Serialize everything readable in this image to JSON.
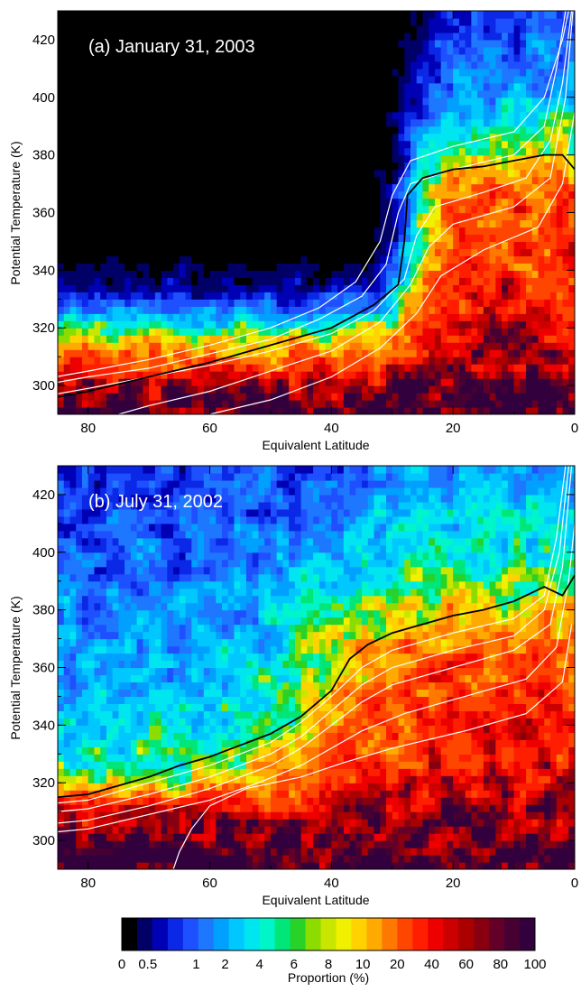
{
  "chart_data": [
    {
      "type": "heatmap",
      "title": "(a) January 31, 2003",
      "xlabel": "Equivalent Latitude",
      "ylabel": "Potential Temperature (K)",
      "xlim": [
        85,
        0
      ],
      "ylim": [
        290,
        430
      ],
      "xticks": [
        80,
        60,
        40,
        20,
        0
      ],
      "yticks": [
        300,
        320,
        340,
        360,
        380,
        400,
        420
      ],
      "black_contour": [
        [
          85,
          296
        ],
        [
          80,
          298
        ],
        [
          70,
          303
        ],
        [
          60,
          308
        ],
        [
          50,
          314
        ],
        [
          40,
          320
        ],
        [
          33,
          328
        ],
        [
          29,
          335
        ],
        [
          28,
          350
        ],
        [
          27.5,
          366
        ],
        [
          25,
          372
        ],
        [
          20,
          375
        ],
        [
          15,
          376
        ],
        [
          10,
          378
        ],
        [
          5,
          380
        ],
        [
          2,
          380
        ],
        [
          0,
          375
        ]
      ],
      "white_contours": [
        [
          [
            88,
            300
          ],
          [
            80,
            303
          ],
          [
            70,
            306
          ],
          [
            60,
            311
          ],
          [
            50,
            316
          ],
          [
            42,
            323
          ],
          [
            35,
            331
          ],
          [
            31,
            342
          ],
          [
            29,
            360
          ],
          [
            27,
            370
          ],
          [
            20,
            375
          ],
          [
            10,
            380
          ],
          [
            5,
            390
          ],
          [
            3,
            410
          ],
          [
            1.5,
            430
          ]
        ],
        [
          [
            88,
            302
          ],
          [
            80,
            305
          ],
          [
            70,
            309
          ],
          [
            60,
            314
          ],
          [
            50,
            320
          ],
          [
            42,
            327
          ],
          [
            36,
            336
          ],
          [
            32,
            350
          ],
          [
            30,
            366
          ],
          [
            27,
            378
          ],
          [
            20,
            383
          ],
          [
            10,
            388
          ],
          [
            5,
            400
          ],
          [
            2,
            420
          ],
          [
            1,
            430
          ]
        ],
        [
          [
            88,
            296
          ],
          [
            80,
            299
          ],
          [
            70,
            303
          ],
          [
            60,
            307
          ],
          [
            50,
            312
          ],
          [
            40,
            318
          ],
          [
            33,
            326
          ],
          [
            28,
            337
          ],
          [
            26,
            352
          ],
          [
            23,
            362
          ],
          [
            15,
            367
          ],
          [
            8,
            372
          ],
          [
            4,
            385
          ],
          [
            2,
            405
          ],
          [
            0.5,
            430
          ]
        ],
        [
          [
            75,
            290
          ],
          [
            70,
            293
          ],
          [
            60,
            298
          ],
          [
            50,
            305
          ],
          [
            40,
            312
          ],
          [
            32,
            322
          ],
          [
            27,
            335
          ],
          [
            24,
            348
          ],
          [
            20,
            356
          ],
          [
            10,
            362
          ],
          [
            4,
            372
          ],
          [
            1.5,
            400
          ],
          [
            0.3,
            430
          ]
        ],
        [
          [
            60,
            290
          ],
          [
            50,
            295
          ],
          [
            40,
            303
          ],
          [
            32,
            313
          ],
          [
            26,
            325
          ],
          [
            22,
            338
          ],
          [
            15,
            347
          ],
          [
            6,
            355
          ],
          [
            2,
            370
          ],
          [
            0,
            395
          ]
        ]
      ],
      "field": {
        "base": [
          [
            290,
            100
          ],
          [
            300,
            64
          ],
          [
            310,
            22
          ],
          [
            318,
            6
          ],
          [
            326,
            1.8
          ],
          [
            334,
            0.5
          ],
          [
            350,
            0.05
          ],
          [
            430,
            0
          ]
        ],
        "warm": [
          [
            290,
            100
          ],
          [
            300,
            80
          ],
          [
            320,
            45
          ],
          [
            340,
            32
          ],
          [
            360,
            25
          ],
          [
            370,
            17
          ],
          [
            380,
            8
          ],
          [
            395,
            3
          ],
          [
            410,
            1.5
          ],
          [
            430,
            0.8
          ]
        ],
        "transition_latitude": 28,
        "transition_width": 2.5
      }
    },
    {
      "type": "heatmap",
      "title": "(b) July 31, 2002",
      "xlabel": "Equivalent Latitude",
      "ylabel": "Potential Temperature (K)",
      "xlim": [
        85,
        0
      ],
      "ylim": [
        290,
        430
      ],
      "xticks": [
        80,
        60,
        40,
        20,
        0
      ],
      "yticks": [
        300,
        320,
        340,
        360,
        380,
        400,
        420
      ],
      "black_contour": [
        [
          85,
          315
        ],
        [
          80,
          316
        ],
        [
          75,
          319
        ],
        [
          70,
          322
        ],
        [
          65,
          326
        ],
        [
          60,
          329
        ],
        [
          55,
          333
        ],
        [
          50,
          337
        ],
        [
          45,
          343
        ],
        [
          40,
          352
        ],
        [
          37,
          363
        ],
        [
          34,
          368
        ],
        [
          30,
          372
        ],
        [
          25,
          375
        ],
        [
          20,
          378
        ],
        [
          15,
          380
        ],
        [
          10,
          383
        ],
        [
          5,
          388
        ],
        [
          2,
          385
        ],
        [
          0,
          392
        ]
      ],
      "white_contours": [
        [
          [
            85,
            313
          ],
          [
            80,
            314
          ],
          [
            70,
            320
          ],
          [
            60,
            326
          ],
          [
            50,
            334
          ],
          [
            45,
            341
          ],
          [
            40,
            350
          ],
          [
            35,
            360
          ],
          [
            30,
            366
          ],
          [
            20,
            372
          ],
          [
            10,
            377
          ],
          [
            5,
            385
          ],
          [
            3,
            405
          ],
          [
            1.5,
            430
          ]
        ],
        [
          [
            85,
            310
          ],
          [
            80,
            311
          ],
          [
            70,
            316
          ],
          [
            60,
            322
          ],
          [
            50,
            330
          ],
          [
            45,
            336
          ],
          [
            40,
            345
          ],
          [
            35,
            354
          ],
          [
            30,
            360
          ],
          [
            20,
            366
          ],
          [
            10,
            371
          ],
          [
            5,
            380
          ],
          [
            2.5,
            400
          ],
          [
            1,
            430
          ]
        ],
        [
          [
            85,
            306
          ],
          [
            80,
            307
          ],
          [
            70,
            312
          ],
          [
            60,
            318
          ],
          [
            50,
            326
          ],
          [
            45,
            332
          ],
          [
            40,
            340
          ],
          [
            35,
            348
          ],
          [
            30,
            354
          ],
          [
            20,
            360
          ],
          [
            10,
            366
          ],
          [
            4,
            375
          ],
          [
            2,
            395
          ],
          [
            0.5,
            430
          ]
        ],
        [
          [
            85,
            303
          ],
          [
            80,
            304
          ],
          [
            70,
            309
          ],
          [
            60,
            314
          ],
          [
            52,
            320
          ],
          [
            45,
            326
          ],
          [
            40,
            332
          ],
          [
            35,
            338
          ],
          [
            28,
            344
          ],
          [
            18,
            350
          ],
          [
            8,
            356
          ],
          [
            3,
            367
          ],
          [
            1,
            390
          ],
          [
            0,
            410
          ]
        ],
        [
          [
            66,
            290
          ],
          [
            65,
            296
          ],
          [
            63,
            304
          ],
          [
            60,
            312
          ],
          [
            54,
            318
          ],
          [
            45,
            322
          ],
          [
            38,
            327
          ],
          [
            30,
            332
          ],
          [
            18,
            338
          ],
          [
            8,
            344
          ],
          [
            2,
            355
          ],
          [
            0.5,
            375
          ]
        ]
      ],
      "field": {
        "base": [
          [
            290,
            100
          ],
          [
            300,
            90
          ],
          [
            308,
            60
          ],
          [
            315,
            22
          ],
          [
            320,
            9
          ],
          [
            328,
            5
          ],
          [
            340,
            3
          ],
          [
            360,
            2
          ],
          [
            380,
            1.5
          ],
          [
            400,
            1
          ],
          [
            430,
            0.8
          ]
        ],
        "warm": [
          [
            290,
            100
          ],
          [
            300,
            75
          ],
          [
            320,
            42
          ],
          [
            340,
            34
          ],
          [
            360,
            25
          ],
          [
            375,
            15
          ],
          [
            390,
            6
          ],
          [
            400,
            4
          ],
          [
            420,
            2.5
          ],
          [
            430,
            1.8
          ]
        ],
        "transition_latitude": 43,
        "transition_width": 7
      }
    }
  ],
  "colorbar": {
    "label": "Proportion (%)",
    "tick_labels": [
      "0",
      "0.5",
      "1",
      "2",
      "4",
      "6",
      "8",
      "10",
      "20",
      "40",
      "60",
      "80",
      "100"
    ],
    "tick_values": [
      0,
      0.5,
      1,
      2,
      4,
      6,
      8,
      10,
      20,
      40,
      60,
      80,
      100
    ],
    "colors": [
      "#000000",
      "#000066",
      "#0000b4",
      "#0a28e6",
      "#1e50ff",
      "#1e78ff",
      "#00a0ff",
      "#00c8ff",
      "#00e6f0",
      "#00f5c8",
      "#00e678",
      "#28d228",
      "#8cdc00",
      "#c8e600",
      "#f0f000",
      "#ffd200",
      "#ffaa00",
      "#ff7800",
      "#ff4600",
      "#ff1e00",
      "#ee0000",
      "#cc0000",
      "#aa0000",
      "#880010",
      "#640028",
      "#460032",
      "#32003c"
    ]
  }
}
